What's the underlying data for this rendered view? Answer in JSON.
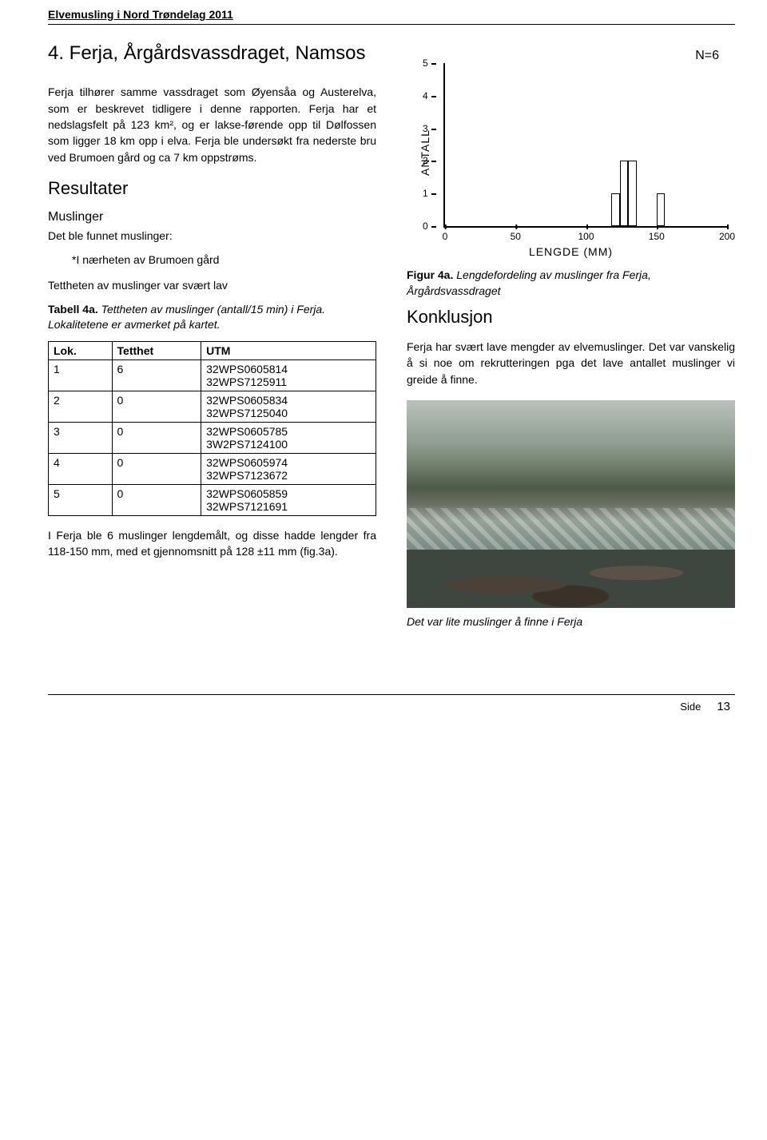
{
  "header": {
    "running": "Elvemusling i Nord Trøndelag 2011"
  },
  "title": "4. Ferja, Årgårdsvassdraget, Namsos",
  "intro_p1": "Ferja tilhører samme vassdraget som Øyensåa og Austerelva, som er beskrevet tidligere i denne rapporten. Ferja har et nedslagsfelt på 123 km², og er lakse-førende opp til Dølfossen som ligger 18 km opp i elva. Ferja ble undersøkt fra nederste bru ved Brumoen gård og ca 7 km oppstrøms.",
  "section_resultater": "Resultater",
  "sub_muslinger": "Muslinger",
  "line_found": "Det ble funnet muslinger:",
  "indent_loc": "*I nærheten av Brumoen gård",
  "line_density": "Tettheten av muslinger var svært lav",
  "table4a_caption_lead": "Tabell 4a.",
  "table4a_caption_rest": " Tettheten av muslinger (antall/15 min) i Ferja. Lokalitetene er avmerket på kartet.",
  "table4a": {
    "columns": [
      "Lok.",
      "Tetthet",
      "UTM"
    ],
    "rows": [
      [
        "1",
        "6",
        "32WPS0605814\n32WPS7125911"
      ],
      [
        "2",
        "0",
        "32WPS0605834\n32WPS7125040"
      ],
      [
        "3",
        "0",
        "32WPS0605785\n3W2PS7124100"
      ],
      [
        "4",
        "0",
        "32WPS0605974\n32WPS7123672"
      ],
      [
        "5",
        "0",
        "32WPS0605859\n32WPS7121691"
      ]
    ]
  },
  "p_after_table": "I Ferja ble 6 muslinger lengdemålt, og disse hadde lengder fra 118-150 mm, med et gjennomsnitt på 128 ±11 mm (fig.3a).",
  "chart": {
    "type": "histogram",
    "n_label": "N=6",
    "ylabel": "ANTALL",
    "xlabel": "LENGDE (MM)",
    "xlim": [
      0,
      200
    ],
    "ylim": [
      0,
      5
    ],
    "xticks": [
      0,
      50,
      100,
      150,
      200
    ],
    "yticks": [
      0,
      1,
      2,
      3,
      4,
      5
    ],
    "bar_fill": "#ffffff",
    "bar_border": "#000000",
    "bars": [
      {
        "x": 118,
        "width": 6,
        "height": 1
      },
      {
        "x": 124,
        "width": 6,
        "height": 2
      },
      {
        "x": 130,
        "width": 6,
        "height": 2
      },
      {
        "x": 150,
        "width": 6,
        "height": 1
      }
    ]
  },
  "fig4a_caption_lead": "Figur 4a.",
  "fig4a_caption_rest": " Lengdefordeling av muslinger fra Ferja, Årgårdsvassdraget",
  "section_konklusjon": "Konklusjon",
  "konklusjon_p": "Ferja har svært lave mengder av elvemuslinger. Det var vanskelig å si noe om rekrutteringen pga det lave antallet muslinger vi greide å finne.",
  "photo_caption": "Det var lite muslinger å finne i Ferja",
  "footer": {
    "side_label": "Side",
    "page_number": "13"
  }
}
